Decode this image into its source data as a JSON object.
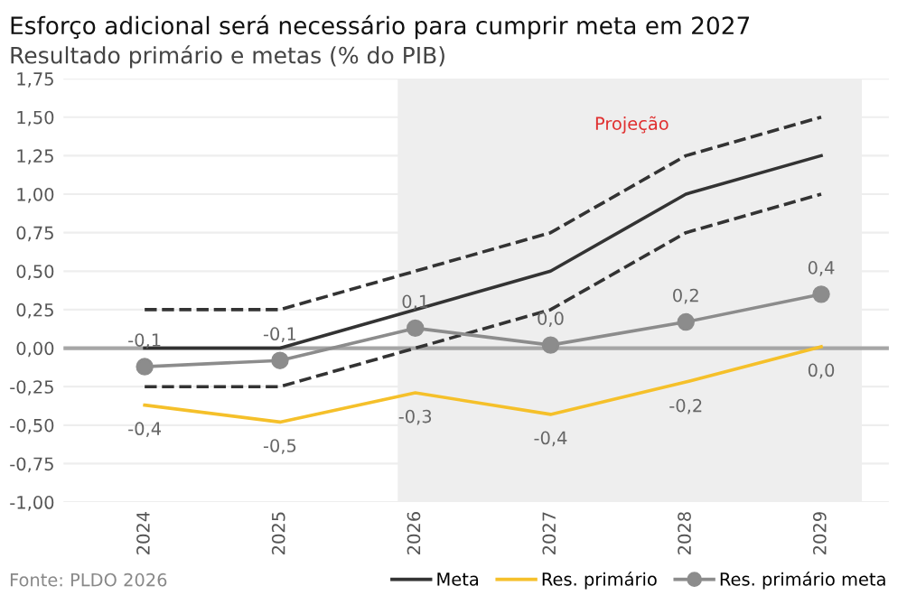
{
  "chart_data": {
    "type": "line",
    "title": "Esforço adicional será necessário para cumprir meta em 2027",
    "subtitle": "Resultado primário e metas (% do PIB)",
    "categories": [
      "2024",
      "2025",
      "2026",
      "2027",
      "2028",
      "2029"
    ],
    "series": [
      {
        "name": "Meta",
        "color": "#333333",
        "values": [
          0,
          0,
          0.25,
          0.5,
          1.0,
          1.25
        ],
        "line_style": "solid",
        "marker": "none"
      },
      {
        "color": "#333333",
        "values": [
          0.25,
          0.25,
          0.5,
          0.75,
          1.25,
          1.5
        ],
        "line_style": "dashed",
        "marker": "none"
      },
      {
        "color": "#333333",
        "values": [
          -0.25,
          -0.25,
          0,
          0.25,
          0.75,
          1.0
        ],
        "line_style": "dashed",
        "marker": "none"
      },
      {
        "name": "Res. primário",
        "color": "#f5c02a",
        "values": [
          -0.37,
          -0.48,
          -0.29,
          -0.43,
          -0.22,
          0.01
        ],
        "line_style": "solid",
        "marker": "none",
        "value_labels": [
          "-0,4",
          "-0,5",
          "-0,3",
          "-0,4",
          "-0,2",
          "0,0"
        ]
      },
      {
        "name": "Res. primário meta",
        "color": "#8c8c8c",
        "values": [
          -0.12,
          -0.08,
          0.13,
          0.02,
          0.17,
          0.35
        ],
        "line_style": "solid",
        "marker": "circle",
        "value_labels": [
          "-0,1",
          "-0,1",
          "0,1",
          "0,0",
          "0,2",
          "0,4"
        ]
      }
    ],
    "ylim": [
      -1.0,
      1.75
    ],
    "yticks": [
      {
        "value": -1.0,
        "label": "-1,00"
      },
      {
        "value": -0.75,
        "label": "-0,75"
      },
      {
        "value": -0.5,
        "label": "-0,50"
      },
      {
        "value": -0.25,
        "label": "-0,25"
      },
      {
        "value": 0,
        "label": "0,00"
      },
      {
        "value": 0.25,
        "label": "0,25"
      },
      {
        "value": 0.5,
        "label": "0,50"
      },
      {
        "value": 0.75,
        "label": "0,75"
      },
      {
        "value": 1.0,
        "label": "1,00"
      },
      {
        "value": 1.25,
        "label": "1,25"
      },
      {
        "value": 1.5,
        "label": "1,50"
      },
      {
        "value": 1.75,
        "label": "1,75"
      }
    ],
    "grid": "y",
    "ref_lines": [
      {
        "axis": "y",
        "value": 0,
        "color": "#a6a6a6"
      }
    ],
    "bands": [
      {
        "axis": "x",
        "from": "2026",
        "to": "2029",
        "label": "Projeção",
        "color": "#eeeeee"
      }
    ],
    "legend": "bottom right",
    "annotations": [
      "Fonte: PLDO 2026"
    ]
  }
}
